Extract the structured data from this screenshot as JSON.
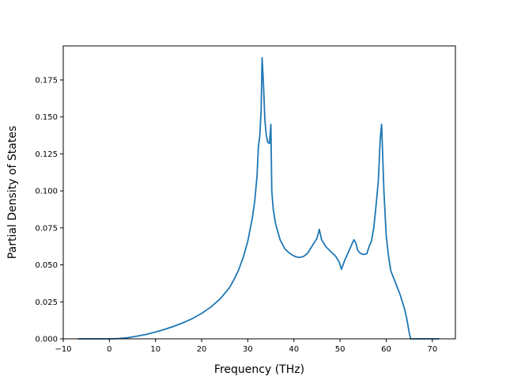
{
  "chart_data": {
    "type": "line",
    "title": "",
    "xlabel": "Frequency (THz)",
    "ylabel": "Partial Density of States",
    "xlim": [
      -10,
      75
    ],
    "ylim": [
      0,
      0.198
    ],
    "x_ticks": [
      -10,
      0,
      10,
      20,
      30,
      40,
      50,
      60,
      70
    ],
    "x_tick_labels": [
      "−10",
      "0",
      "10",
      "20",
      "30",
      "40",
      "50",
      "60",
      "70"
    ],
    "y_ticks": [
      0,
      0.025,
      0.05,
      0.075,
      0.1,
      0.125,
      0.15,
      0.175
    ],
    "y_tick_labels": [
      "0.000",
      "0.025",
      "0.050",
      "0.075",
      "0.100",
      "0.125",
      "0.150",
      "0.175"
    ],
    "grid": false,
    "legend": "none",
    "series": [
      {
        "color": "#1f77b4",
        "x": [
          -6.8,
          0,
          2,
          4,
          6,
          8,
          10,
          12,
          14,
          16,
          18,
          20,
          22,
          24,
          26,
          27,
          28,
          29,
          30,
          31,
          31.5,
          32,
          32.3,
          32.6,
          32.9,
          33.1,
          33.4,
          33.7,
          34,
          34.3,
          34.7,
          35,
          35.2,
          35.5,
          36,
          37,
          38,
          39,
          40,
          41,
          42,
          43,
          44,
          45,
          45.5,
          46,
          47,
          48,
          49,
          49.8,
          50.3,
          51,
          52,
          53,
          53.4,
          53.8,
          54.3,
          55,
          55.8,
          56.3,
          56.8,
          57.3,
          57.8,
          58.3,
          58.7,
          59,
          59.2,
          59.5,
          60,
          60.5,
          61,
          62,
          63,
          64,
          64.5,
          65,
          65.3,
          66,
          68,
          70,
          71.5
        ],
        "y": [
          0,
          0,
          0.0002,
          0.0008,
          0.0018,
          0.003,
          0.0046,
          0.0064,
          0.0085,
          0.0109,
          0.0137,
          0.0172,
          0.0215,
          0.027,
          0.0345,
          0.04,
          0.0465,
          0.055,
          0.066,
          0.082,
          0.093,
          0.11,
          0.13,
          0.137,
          0.155,
          0.19,
          0.172,
          0.148,
          0.138,
          0.133,
          0.132,
          0.145,
          0.1,
          0.088,
          0.078,
          0.067,
          0.061,
          0.058,
          0.056,
          0.055,
          0.0555,
          0.058,
          0.063,
          0.068,
          0.074,
          0.067,
          0.062,
          0.059,
          0.056,
          0.052,
          0.047,
          0.053,
          0.06,
          0.067,
          0.065,
          0.06,
          0.058,
          0.057,
          0.0575,
          0.0625,
          0.066,
          0.075,
          0.09,
          0.107,
          0.135,
          0.145,
          0.128,
          0.1,
          0.07,
          0.056,
          0.046,
          0.038,
          0.03,
          0.02,
          0.013,
          0.004,
          0,
          0,
          0,
          0,
          0
        ]
      }
    ]
  }
}
